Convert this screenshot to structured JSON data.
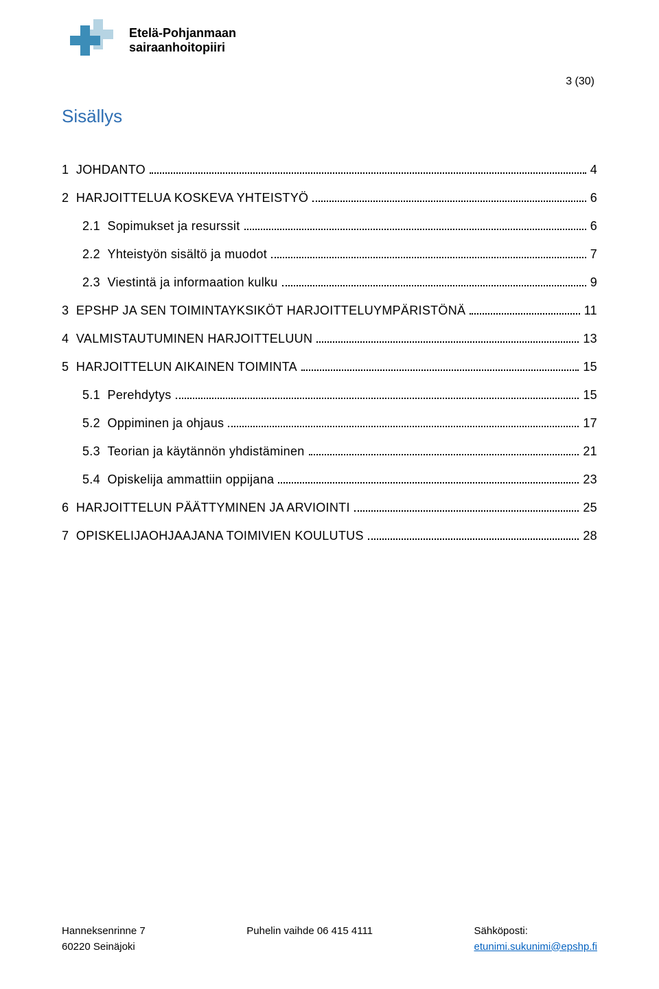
{
  "header": {
    "org_line1": "Etelä-Pohjanmaan",
    "org_line2": "sairaanhoitopiiri",
    "page_indicator": "3 (30)"
  },
  "logo": {
    "primary_color": "#3c8db8",
    "secondary_color": "#b6d4e3"
  },
  "toc": {
    "title": "Sisällys",
    "title_color": "#2f6fb3",
    "items": [
      {
        "level": 1,
        "num": "1",
        "label": "JOHDANTO",
        "page": "4"
      },
      {
        "level": 1,
        "num": "2",
        "label": "HARJOITTELUA KOSKEVA YHTEISTYÖ",
        "page": "6"
      },
      {
        "level": 2,
        "num": "2.1",
        "label": "Sopimukset ja resurssit",
        "page": "6"
      },
      {
        "level": 2,
        "num": "2.2",
        "label": "Yhteistyön sisältö ja muodot",
        "page": "7"
      },
      {
        "level": 2,
        "num": "2.3",
        "label": "Viestintä ja informaation kulku",
        "page": "9"
      },
      {
        "level": 1,
        "num": "3",
        "label": "EPSHP JA SEN TOIMINTAYKSIKÖT HARJOITTELUYMPÄRISTÖNÄ",
        "page": "11"
      },
      {
        "level": 1,
        "num": "4",
        "label": "VALMISTAUTUMINEN  HARJOITTELUUN",
        "page": "13"
      },
      {
        "level": 1,
        "num": "5",
        "label": "HARJOITTELUN AIKAINEN TOIMINTA",
        "page": "15"
      },
      {
        "level": 2,
        "num": "5.1",
        "label": "Perehdytys",
        "page": "15"
      },
      {
        "level": 2,
        "num": "5.2",
        "label": "Oppiminen ja ohjaus",
        "page": "17"
      },
      {
        "level": 2,
        "num": "5.3",
        "label": "Teorian ja käytännön yhdistäminen",
        "page": "21"
      },
      {
        "level": 2,
        "num": "5.4",
        "label": "Opiskelija ammattiin oppijana",
        "page": "23"
      },
      {
        "level": 1,
        "num": "6",
        "label": "HARJOITTELUN PÄÄTTYMINEN JA ARVIOINTI",
        "page": "25"
      },
      {
        "level": 1,
        "num": "7",
        "label": "OPISKELIJAOHJAAJANA TOIMIVIEN KOULUTUS",
        "page": "28"
      }
    ]
  },
  "footer": {
    "col1_line1": "Hanneksenrinne 7",
    "col1_line2": "60220 Seinäjoki",
    "col2_line1": "Puhelin vaihde 06 415 4111",
    "col3_line1": "Sähköposti:",
    "col3_line2": "etunimi.sukunimi@epshp.fi",
    "link_color": "#0563c1"
  }
}
